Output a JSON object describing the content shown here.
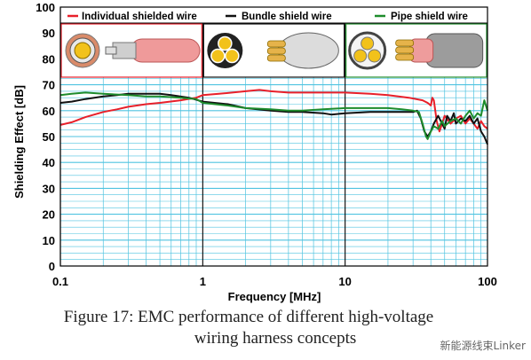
{
  "chart_data": {
    "type": "line",
    "xlabel": "Frequency [MHz]",
    "ylabel": "Shielding Effect [dB]",
    "x_scale": "log",
    "xlim": [
      0.1,
      100
    ],
    "ylim": [
      0,
      100
    ],
    "x_ticks": [
      "0.1",
      "1",
      "10",
      "100"
    ],
    "y_ticks": [
      "0",
      "10",
      "20",
      "30",
      "40",
      "50",
      "60",
      "70",
      "80",
      "90",
      "100"
    ],
    "grid": true,
    "legend_position": "top",
    "series": [
      {
        "name": "Individual shielded wire",
        "color": "#e8202a",
        "points": [
          [
            0.1,
            54.5
          ],
          [
            0.12,
            55.5
          ],
          [
            0.15,
            57.5
          ],
          [
            0.2,
            59.5
          ],
          [
            0.25,
            60.5
          ],
          [
            0.3,
            61.5
          ],
          [
            0.4,
            62.5
          ],
          [
            0.5,
            63
          ],
          [
            0.7,
            64
          ],
          [
            0.9,
            65
          ],
          [
            1,
            66
          ],
          [
            1.3,
            66.5
          ],
          [
            2,
            67.5
          ],
          [
            2.5,
            68
          ],
          [
            3,
            67.5
          ],
          [
            4,
            67
          ],
          [
            6,
            67
          ],
          [
            8,
            67
          ],
          [
            10,
            67
          ],
          [
            15,
            66.5
          ],
          [
            20,
            66
          ],
          [
            28,
            65
          ],
          [
            35,
            64
          ],
          [
            38,
            63
          ],
          [
            40,
            62
          ],
          [
            41,
            65
          ],
          [
            42,
            64
          ],
          [
            44,
            56
          ],
          [
            46,
            52
          ],
          [
            48,
            55
          ],
          [
            50,
            58
          ],
          [
            55,
            55
          ],
          [
            60,
            57
          ],
          [
            65,
            58
          ],
          [
            70,
            55
          ],
          [
            75,
            57
          ],
          [
            80,
            55
          ],
          [
            85,
            53
          ],
          [
            90,
            56
          ],
          [
            95,
            54
          ],
          [
            100,
            53
          ]
        ]
      },
      {
        "name": "Bundle shield wire",
        "color": "#111111",
        "points": [
          [
            0.1,
            63
          ],
          [
            0.12,
            63.5
          ],
          [
            0.15,
            64.5
          ],
          [
            0.2,
            65.5
          ],
          [
            0.25,
            66
          ],
          [
            0.3,
            66.5
          ],
          [
            0.4,
            66.5
          ],
          [
            0.5,
            66.5
          ],
          [
            0.6,
            66
          ],
          [
            0.8,
            65
          ],
          [
            1,
            63.5
          ],
          [
            1.5,
            62.5
          ],
          [
            2,
            61
          ],
          [
            3,
            60
          ],
          [
            4,
            59.5
          ],
          [
            5,
            59.5
          ],
          [
            7,
            59
          ],
          [
            8,
            58.5
          ],
          [
            10,
            59
          ],
          [
            15,
            59.5
          ],
          [
            20,
            59.5
          ],
          [
            25,
            59.5
          ],
          [
            30,
            59.5
          ],
          [
            32,
            60
          ],
          [
            34,
            57
          ],
          [
            36,
            52
          ],
          [
            38,
            50
          ],
          [
            40,
            52
          ],
          [
            42,
            55
          ],
          [
            45,
            58
          ],
          [
            48,
            55
          ],
          [
            50,
            53
          ],
          [
            52,
            58
          ],
          [
            55,
            56
          ],
          [
            58,
            59
          ],
          [
            60,
            55
          ],
          [
            65,
            57
          ],
          [
            70,
            56
          ],
          [
            75,
            58
          ],
          [
            80,
            55
          ],
          [
            85,
            57
          ],
          [
            90,
            52
          ],
          [
            95,
            50
          ],
          [
            100,
            47
          ]
        ]
      },
      {
        "name": "Pipe shield wire",
        "color": "#1e8c2c",
        "points": [
          [
            0.1,
            66
          ],
          [
            0.12,
            66.5
          ],
          [
            0.15,
            67
          ],
          [
            0.2,
            66.5
          ],
          [
            0.3,
            66
          ],
          [
            0.4,
            65.5
          ],
          [
            0.5,
            65.5
          ],
          [
            0.7,
            65
          ],
          [
            0.9,
            64.5
          ],
          [
            1,
            63
          ],
          [
            1.5,
            62
          ],
          [
            2,
            61
          ],
          [
            3,
            60.5
          ],
          [
            4,
            60
          ],
          [
            5,
            60
          ],
          [
            7,
            60.5
          ],
          [
            10,
            61
          ],
          [
            15,
            61
          ],
          [
            20,
            61
          ],
          [
            25,
            60.5
          ],
          [
            30,
            60
          ],
          [
            33,
            59.5
          ],
          [
            35,
            55
          ],
          [
            37,
            50
          ],
          [
            38,
            49
          ],
          [
            40,
            52
          ],
          [
            42,
            54
          ],
          [
            45,
            53
          ],
          [
            48,
            56
          ],
          [
            50,
            54
          ],
          [
            55,
            56
          ],
          [
            60,
            57
          ],
          [
            65,
            55
          ],
          [
            70,
            58
          ],
          [
            75,
            60
          ],
          [
            80,
            57
          ],
          [
            85,
            59
          ],
          [
            90,
            58
          ],
          [
            95,
            64
          ],
          [
            100,
            60
          ]
        ]
      }
    ]
  },
  "insets": [
    {
      "name": "individual-shielded-cable-image",
      "border_color": "#e8202a"
    },
    {
      "name": "bundle-shield-cable-image",
      "border_color": "#111111"
    },
    {
      "name": "pipe-shield-cable-image",
      "border_color": "#1e8c2c"
    }
  ],
  "caption": {
    "line1": "Figure 17: EMC performance of different high-voltage",
    "line2": "wiring harness concepts"
  },
  "watermark": "新能源线束Linker",
  "colors": {
    "grid": "#4fc3e0",
    "grid_major": "#9ad8ec"
  }
}
